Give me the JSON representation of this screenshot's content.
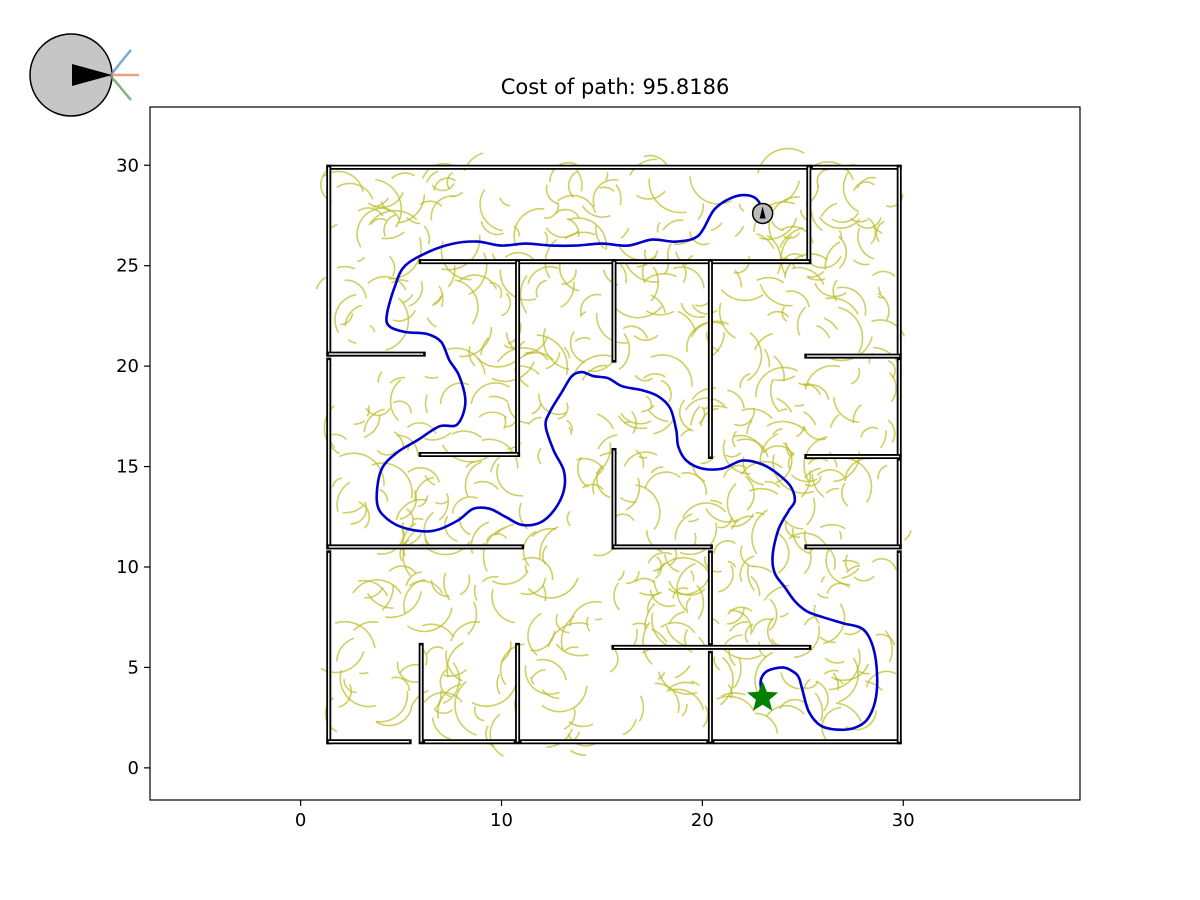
{
  "chart_data": {
    "type": "line",
    "title": "Cost of path: 95.8186",
    "xlabel": "",
    "ylabel": "",
    "xlim": [
      -7.5,
      38.8
    ],
    "ylim": [
      -1.6,
      32.9
    ],
    "xticks": [
      0,
      10,
      20,
      30
    ],
    "yticks": [
      0,
      5,
      10,
      15,
      20,
      25,
      30
    ],
    "grid": false,
    "colors": {
      "walls": "#000000",
      "path": "#0000cc",
      "tree": "#bbbb22",
      "goal": "#008000",
      "robot": "#bbbbbb"
    },
    "walls": [
      [
        [
          1.4,
          29.9
        ],
        [
          25.2,
          29.9
        ]
      ],
      [
        [
          25.5,
          29.9
        ],
        [
          29.8,
          29.9
        ]
      ],
      [
        [
          1.4,
          29.9
        ],
        [
          1.4,
          20.6
        ]
      ],
      [
        [
          1.4,
          20.6
        ],
        [
          6.1,
          20.6
        ]
      ],
      [
        [
          1.4,
          20.3
        ],
        [
          1.4,
          11.0
        ]
      ],
      [
        [
          1.4,
          11.0
        ],
        [
          11.0,
          11.0
        ]
      ],
      [
        [
          1.4,
          10.7
        ],
        [
          1.4,
          1.3
        ]
      ],
      [
        [
          1.4,
          1.3
        ],
        [
          5.4,
          1.3
        ]
      ],
      [
        [
          6.2,
          1.3
        ],
        [
          10.6,
          1.3
        ]
      ],
      [
        [
          11.0,
          1.3
        ],
        [
          20.2,
          1.3
        ]
      ],
      [
        [
          20.6,
          1.3
        ],
        [
          29.8,
          1.3
        ]
      ],
      [
        [
          29.8,
          29.9
        ],
        [
          29.8,
          20.6
        ]
      ],
      [
        [
          29.8,
          20.3
        ],
        [
          29.8,
          15.6
        ]
      ],
      [
        [
          29.8,
          15.3
        ],
        [
          29.8,
          11.0
        ]
      ],
      [
        [
          29.8,
          10.7
        ],
        [
          29.8,
          1.3
        ]
      ],
      [
        [
          25.3,
          29.9
        ],
        [
          25.3,
          25.2
        ]
      ],
      [
        [
          6.0,
          25.2
        ],
        [
          25.3,
          25.2
        ]
      ],
      [
        [
          10.8,
          25.2
        ],
        [
          10.8,
          15.6
        ]
      ],
      [
        [
          15.6,
          25.2
        ],
        [
          15.6,
          20.3
        ]
      ],
      [
        [
          20.4,
          25.2
        ],
        [
          20.4,
          15.5
        ]
      ],
      [
        [
          6.0,
          15.6
        ],
        [
          10.8,
          15.6
        ]
      ],
      [
        [
          25.2,
          20.5
        ],
        [
          29.8,
          20.5
        ]
      ],
      [
        [
          25.2,
          15.5
        ],
        [
          29.8,
          15.5
        ]
      ],
      [
        [
          15.6,
          15.8
        ],
        [
          15.6,
          11.0
        ]
      ],
      [
        [
          15.6,
          11.0
        ],
        [
          20.4,
          11.0
        ]
      ],
      [
        [
          25.2,
          11.0
        ],
        [
          29.8,
          11.0
        ]
      ],
      [
        [
          20.4,
          10.7
        ],
        [
          20.4,
          6.2
        ]
      ],
      [
        [
          15.6,
          6.0
        ],
        [
          25.3,
          6.0
        ]
      ],
      [
        [
          20.4,
          5.7
        ],
        [
          20.4,
          1.3
        ]
      ],
      [
        [
          6.0,
          6.1
        ],
        [
          6.0,
          1.3
        ]
      ],
      [
        [
          10.8,
          6.1
        ],
        [
          10.8,
          1.3
        ]
      ]
    ],
    "path": {
      "x": [
        23.0,
        22.8,
        22.3,
        21.5,
        20.6,
        19.8,
        18.7,
        17.5,
        16.3,
        15.0,
        13.7,
        12.5,
        11.2,
        10.0,
        8.8,
        7.6,
        6.4,
        5.2,
        4.7,
        4.3,
        4.4,
        5.2,
        6.3,
        7.0,
        7.4,
        7.9,
        8.2,
        7.8,
        6.9,
        5.8,
        4.8,
        4.0,
        3.8,
        4.3,
        5.3,
        6.6,
        7.8,
        8.6,
        9.4,
        10.2,
        11.0,
        11.9,
        12.6,
        13.1,
        13.1,
        12.6,
        12.2,
        12.4,
        13.0,
        13.5,
        14.0,
        14.6,
        15.3,
        16.0,
        17.0,
        17.8,
        18.4,
        18.7,
        18.8,
        19.2,
        20.0,
        21.0,
        22.0,
        23.0,
        23.8,
        24.4,
        24.6,
        24.3,
        23.8,
        23.5,
        23.6,
        24.1,
        24.6,
        25.2,
        26.0,
        27.0,
        28.0,
        28.5,
        28.7,
        28.6,
        28.2,
        27.6,
        26.8,
        25.9,
        25.3,
        25.0,
        24.8,
        24.5,
        24.0,
        23.2,
        22.9,
        23.0
      ],
      "y": [
        27.5,
        28.2,
        28.5,
        28.4,
        27.8,
        26.5,
        26.2,
        26.3,
        26.0,
        26.1,
        26.0,
        26.0,
        26.1,
        26.0,
        26.2,
        26.1,
        25.7,
        25.0,
        24.0,
        22.6,
        22.0,
        21.7,
        21.6,
        21.2,
        20.3,
        19.5,
        18.2,
        17.1,
        17.0,
        16.3,
        15.7,
        14.8,
        13.2,
        12.4,
        11.9,
        11.8,
        12.3,
        12.9,
        12.9,
        12.5,
        12.1,
        12.2,
        12.8,
        13.8,
        14.8,
        15.8,
        17.0,
        17.7,
        18.7,
        19.5,
        19.7,
        19.5,
        19.4,
        19.0,
        18.8,
        18.5,
        17.9,
        16.8,
        16.0,
        15.3,
        14.9,
        14.9,
        15.3,
        15.1,
        14.6,
        14.0,
        13.3,
        12.8,
        11.9,
        10.6,
        9.7,
        9.0,
        8.3,
        7.8,
        7.5,
        7.2,
        6.9,
        6.0,
        4.6,
        3.3,
        2.4,
        2.0,
        1.9,
        2.1,
        2.8,
        3.8,
        4.5,
        4.8,
        5.0,
        4.8,
        4.3,
        3.5
      ]
    },
    "start": {
      "x": 23.0,
      "y": 27.6
    },
    "goal": {
      "x": 23.0,
      "y": 3.5
    }
  },
  "inset": {
    "icon": "robot-sensor-icon",
    "colors": {
      "body": "#c6c6c6",
      "beam_left": "#6699cc",
      "beam_center": "#e8906f",
      "beam_right": "#66aa66"
    }
  }
}
